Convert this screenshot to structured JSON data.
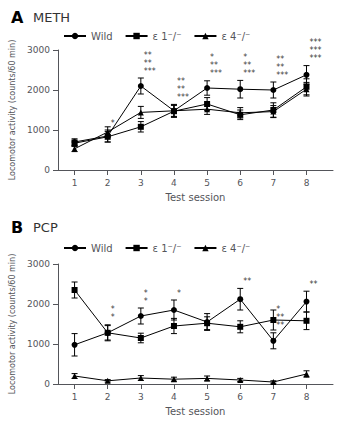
{
  "chart_data": [
    {
      "type": "line",
      "panel_label": "A",
      "title": "METH",
      "xlabel": "Test session",
      "ylabel": "Locomotor activity (counts/60 min)",
      "x": [
        1,
        2,
        3,
        4,
        5,
        6,
        7,
        8
      ],
      "xlim": [
        0.5,
        8.8
      ],
      "xticks": [
        1,
        2,
        3,
        4,
        5,
        6,
        7,
        8
      ],
      "ylim": [
        0,
        3000
      ],
      "yticks": [
        0,
        1000,
        2000,
        3000
      ],
      "grid": false,
      "legend": "upper left",
      "series": [
        {
          "name": "Wild",
          "color": "black",
          "marker": "circle",
          "values": [
            700,
            850,
            2100,
            1480,
            2050,
            2020,
            2000,
            2380
          ],
          "errors": [
            80,
            150,
            200,
            160,
            180,
            220,
            200,
            230
          ],
          "significance": [
            null,
            "*",
            "***",
            "***",
            "***",
            "***",
            "***",
            "***"
          ]
        },
        {
          "name": "ε 1⁻/⁻",
          "color": "black",
          "marker": "square",
          "values": [
            670,
            830,
            1080,
            1470,
            1650,
            1380,
            1500,
            2080
          ],
          "errors": [
            80,
            130,
            130,
            150,
            160,
            120,
            180,
            200
          ],
          "significance": [
            null,
            null,
            "**",
            "**",
            "**",
            "**",
            "**",
            "***"
          ]
        },
        {
          "name": "ε 4⁻/⁻",
          "color": "black",
          "marker": "triangle",
          "values": [
            530,
            950,
            1440,
            1480,
            1520,
            1430,
            1460,
            2020
          ],
          "errors": [
            70,
            130,
            150,
            140,
            130,
            130,
            150,
            170
          ],
          "significance": [
            null,
            null,
            "**",
            "**",
            "*",
            "*",
            "**",
            "***"
          ]
        }
      ]
    },
    {
      "type": "line",
      "panel_label": "B",
      "title": "PCP",
      "xlabel": "Test session",
      "ylabel": "Locomotor activity (counts/60 min)",
      "x": [
        1,
        2,
        3,
        4,
        5,
        6,
        7,
        8
      ],
      "xlim": [
        0.5,
        8.8
      ],
      "xticks": [
        1,
        2,
        3,
        4,
        5,
        6,
        7,
        8
      ],
      "ylim": [
        0,
        3000
      ],
      "yticks": [
        0,
        1000,
        2000,
        3000
      ],
      "grid": false,
      "legend": "upper left",
      "series": [
        {
          "name": "Wild",
          "color": "black",
          "marker": "circle",
          "values": [
            980,
            1280,
            1700,
            1850,
            1550,
            2120,
            1080,
            2060
          ],
          "errors": [
            280,
            200,
            200,
            250,
            210,
            270,
            200,
            260
          ],
          "significance": [
            null,
            "*",
            "*",
            "*",
            null,
            "**",
            "**",
            "**"
          ]
        },
        {
          "name": "ε 1⁻/⁻",
          "color": "black",
          "marker": "square",
          "values": [
            2350,
            1280,
            1150,
            1450,
            1520,
            1430,
            1600,
            1580
          ],
          "errors": [
            200,
            180,
            120,
            190,
            160,
            150,
            250,
            220
          ],
          "significance": [
            null,
            "*",
            "*",
            null,
            null,
            null,
            "**",
            null
          ]
        },
        {
          "name": "ε 4⁻/⁻",
          "color": "black",
          "marker": "triangle",
          "values": [
            200,
            80,
            150,
            120,
            140,
            100,
            50,
            250
          ],
          "errors": [
            60,
            30,
            60,
            50,
            60,
            40,
            30,
            80
          ],
          "significance": [
            null,
            null,
            null,
            null,
            null,
            null,
            "*",
            null
          ]
        }
      ]
    }
  ]
}
